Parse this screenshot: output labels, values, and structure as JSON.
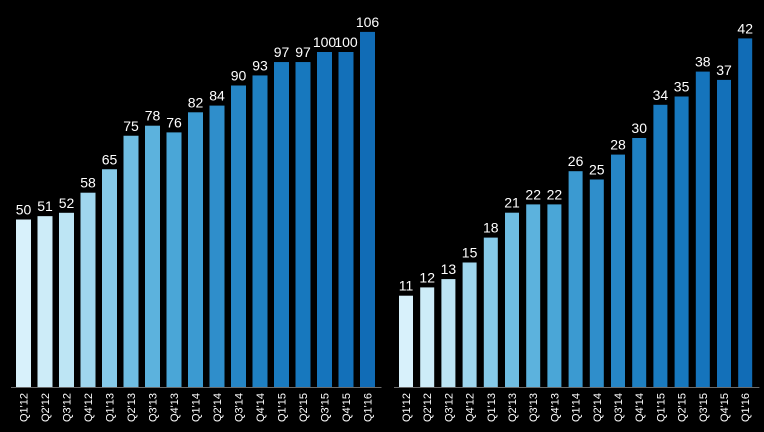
{
  "chart_data": [
    {
      "type": "bar",
      "title": "",
      "xlabel": "",
      "ylabel": "",
      "ylim": [
        0,
        110
      ],
      "grid": false,
      "legend": "none",
      "categories": [
        "Q1'12",
        "Q2'12",
        "Q3'12",
        "Q4'12",
        "Q1'13",
        "Q2'13",
        "Q3'13",
        "Q4'13",
        "Q1'14",
        "Q2'14",
        "Q3'14",
        "Q4'14",
        "Q1'15",
        "Q2'15",
        "Q3'15",
        "Q4'15",
        "Q1'16"
      ],
      "values": [
        50,
        51,
        52,
        58,
        65,
        75,
        78,
        76,
        82,
        84,
        90,
        93,
        97,
        97,
        100,
        100,
        106
      ],
      "colors": [
        "#d8f1fb",
        "#cdecf8",
        "#bde5f4",
        "#9fd6ee",
        "#86cae9",
        "#6fbde2",
        "#5cb2dd",
        "#4aa6d7",
        "#3b9ad1",
        "#2f8ecb",
        "#2686c6",
        "#1f80c2",
        "#1a7bc0",
        "#1778be",
        "#1574bc",
        "#1370b9",
        "#116cb6"
      ]
    },
    {
      "type": "bar",
      "title": "",
      "xlabel": "",
      "ylabel": "",
      "ylim": [
        0,
        42
      ],
      "grid": false,
      "legend": "none",
      "categories": [
        "Q1'12",
        "Q2'12",
        "Q3'12",
        "Q4'12",
        "Q1'13",
        "Q2'13",
        "Q3'13",
        "Q4'13",
        "Q1'14",
        "Q2'14",
        "Q3'14",
        "Q4'14",
        "Q1'15",
        "Q2'15",
        "Q3'15",
        "Q4'15",
        "Q1'16"
      ],
      "values": [
        11,
        12,
        13,
        15,
        18,
        21,
        22,
        22,
        26,
        25,
        28,
        30,
        34,
        35,
        38,
        37,
        42
      ],
      "colors": [
        "#d8f1fb",
        "#cdecf8",
        "#bde5f4",
        "#9fd6ee",
        "#86cae9",
        "#6fbde2",
        "#5cb2dd",
        "#4aa6d7",
        "#3b9ad1",
        "#2f8ecb",
        "#2686c6",
        "#1f80c2",
        "#1a7bc0",
        "#1778be",
        "#1574bc",
        "#1370b9",
        "#116cb6"
      ]
    }
  ]
}
